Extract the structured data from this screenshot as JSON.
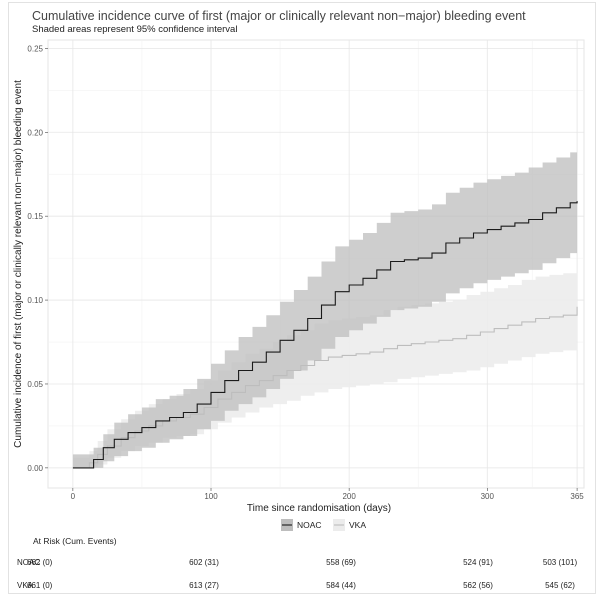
{
  "chart_data": {
    "type": "line",
    "title": "Cumulative incidence curve of first (major or clinically relevant non−major) bleeding event",
    "subtitle": "Shaded areas represent 95% confidence interval",
    "xlabel": "Time since randomisation (days)",
    "ylabel": "Cumulative incidence of first (major or clinically relevant non−major) bleeding event",
    "xlim": [
      -18,
      370
    ],
    "ylim": [
      -0.012,
      0.255
    ],
    "x_ticks": [
      0,
      100,
      200,
      300,
      365
    ],
    "y_ticks": [
      0.0,
      0.05,
      0.1,
      0.15,
      0.2,
      0.25
    ],
    "grid": true,
    "legend_position": "bottom",
    "series": [
      {
        "name": "NOAC",
        "color": "#1a1a1a",
        "band_color": "#bdbdbd",
        "x": [
          0,
          12,
          15,
          22,
          30,
          40,
          50,
          60,
          70,
          80,
          90,
          100,
          110,
          120,
          130,
          140,
          150,
          160,
          170,
          180,
          190,
          200,
          210,
          220,
          230,
          240,
          250,
          260,
          270,
          280,
          290,
          300,
          310,
          320,
          330,
          340,
          350,
          360,
          365
        ],
        "y": [
          0,
          0,
          0.005,
          0.012,
          0.017,
          0.021,
          0.024,
          0.028,
          0.03,
          0.033,
          0.038,
          0.045,
          0.052,
          0.058,
          0.063,
          0.069,
          0.076,
          0.082,
          0.089,
          0.097,
          0.105,
          0.109,
          0.113,
          0.118,
          0.123,
          0.124,
          0.125,
          0.128,
          0.134,
          0.137,
          0.14,
          0.142,
          0.144,
          0.146,
          0.148,
          0.152,
          0.155,
          0.158,
          0.159
        ],
        "lower": [
          0,
          0,
          0.0,
          0.004,
          0.007,
          0.01,
          0.012,
          0.015,
          0.017,
          0.019,
          0.023,
          0.028,
          0.034,
          0.038,
          0.042,
          0.047,
          0.053,
          0.058,
          0.064,
          0.071,
          0.078,
          0.082,
          0.086,
          0.09,
          0.094,
          0.095,
          0.096,
          0.099,
          0.104,
          0.107,
          0.11,
          0.112,
          0.114,
          0.116,
          0.118,
          0.122,
          0.125,
          0.128,
          0.13
        ],
        "upper": [
          0.008,
          0.008,
          0.012,
          0.02,
          0.027,
          0.032,
          0.036,
          0.041,
          0.043,
          0.047,
          0.053,
          0.062,
          0.07,
          0.078,
          0.084,
          0.091,
          0.099,
          0.106,
          0.114,
          0.123,
          0.132,
          0.136,
          0.14,
          0.146,
          0.152,
          0.153,
          0.154,
          0.157,
          0.164,
          0.167,
          0.17,
          0.172,
          0.174,
          0.176,
          0.179,
          0.182,
          0.185,
          0.188,
          0.189
        ]
      },
      {
        "name": "VKA",
        "color": "#bdbdbd",
        "band_color": "#ececec",
        "x": [
          0,
          12,
          18,
          25,
          35,
          45,
          55,
          65,
          75,
          85,
          95,
          105,
          115,
          125,
          135,
          145,
          155,
          165,
          175,
          185,
          195,
          205,
          215,
          225,
          235,
          245,
          255,
          265,
          275,
          285,
          295,
          305,
          315,
          325,
          335,
          345,
          355,
          365
        ],
        "y": [
          0,
          0.003,
          0.008,
          0.013,
          0.018,
          0.022,
          0.025,
          0.028,
          0.03,
          0.032,
          0.036,
          0.041,
          0.045,
          0.049,
          0.052,
          0.055,
          0.058,
          0.061,
          0.064,
          0.066,
          0.067,
          0.068,
          0.069,
          0.071,
          0.073,
          0.074,
          0.075,
          0.076,
          0.077,
          0.079,
          0.081,
          0.083,
          0.085,
          0.087,
          0.089,
          0.09,
          0.091,
          0.096
        ],
        "lower": [
          0,
          0,
          0.002,
          0.006,
          0.01,
          0.013,
          0.015,
          0.018,
          0.019,
          0.02,
          0.023,
          0.027,
          0.03,
          0.033,
          0.036,
          0.038,
          0.04,
          0.043,
          0.045,
          0.047,
          0.048,
          0.049,
          0.05,
          0.051,
          0.053,
          0.054,
          0.055,
          0.056,
          0.057,
          0.058,
          0.06,
          0.062,
          0.064,
          0.066,
          0.068,
          0.069,
          0.07,
          0.075
        ],
        "upper": [
          0.006,
          0.01,
          0.016,
          0.023,
          0.029,
          0.034,
          0.038,
          0.041,
          0.044,
          0.047,
          0.052,
          0.058,
          0.063,
          0.068,
          0.071,
          0.075,
          0.079,
          0.082,
          0.086,
          0.088,
          0.089,
          0.09,
          0.091,
          0.094,
          0.096,
          0.097,
          0.098,
          0.099,
          0.1,
          0.103,
          0.105,
          0.107,
          0.109,
          0.112,
          0.114,
          0.115,
          0.116,
          0.122
        ]
      }
    ],
    "at_risk": {
      "header": "At Risk (Cum. Events)",
      "times": [
        0,
        100,
        200,
        300,
        365
      ],
      "rows": [
        {
          "group": "NOAC",
          "values": [
            "662 (0)",
            "602 (31)",
            "558 (69)",
            "524 (91)",
            "503 (101)"
          ]
        },
        {
          "group": "VKA",
          "values": [
            "661 (0)",
            "613 (27)",
            "584 (44)",
            "562 (56)",
            "545 (62)"
          ]
        }
      ]
    }
  }
}
